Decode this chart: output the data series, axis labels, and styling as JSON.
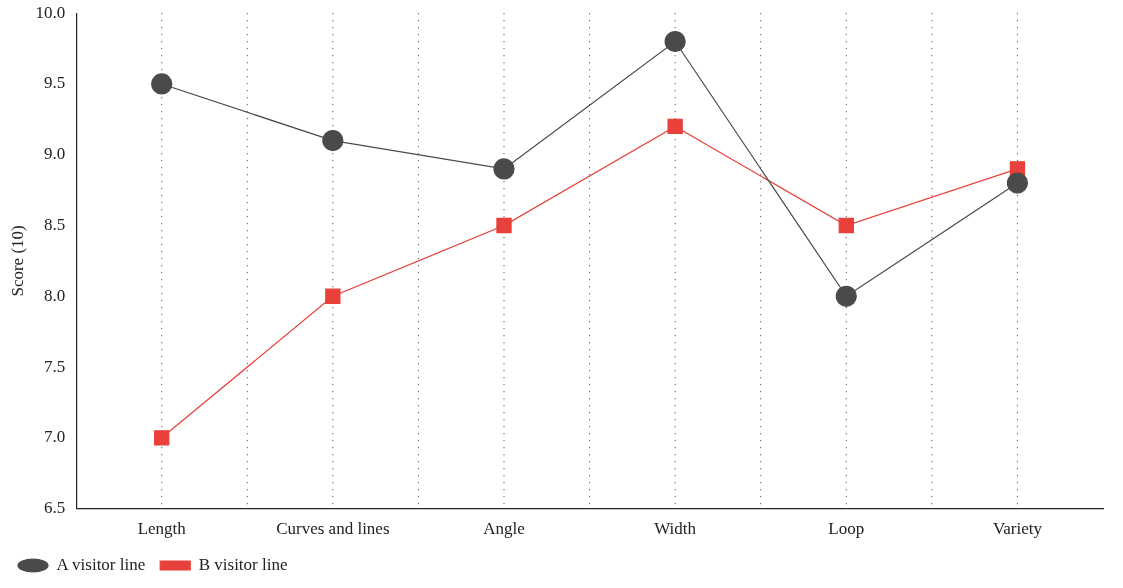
{
  "chart_data": {
    "type": "line",
    "ylabel": "Score (10)",
    "categories": [
      "Length",
      "Curves and lines",
      "Angle",
      "Width",
      "Loop",
      "Variety"
    ],
    "series": [
      {
        "name": "A visitor line",
        "color": "#4a4a4a",
        "marker": "circle",
        "values": [
          9.5,
          9.1,
          8.9,
          9.8,
          8.0,
          8.8
        ]
      },
      {
        "name": "B visitor line",
        "color": "#e8403a",
        "marker": "square",
        "values": [
          7.0,
          8.0,
          8.5,
          9.2,
          8.5,
          8.9
        ]
      }
    ],
    "ylim": [
      6.5,
      10.0
    ],
    "yticks": [
      {
        "value": 6.5,
        "label": "6.5"
      },
      {
        "value": 7.0,
        "label": "7.0"
      },
      {
        "value": 7.5,
        "label": "7.5"
      },
      {
        "value": 8.0,
        "label": "8.0"
      },
      {
        "value": 8.5,
        "label": "8.5"
      },
      {
        "value": 9.0,
        "label": "9.0"
      },
      {
        "value": 9.5,
        "label": "9.5"
      },
      {
        "value": 10.0,
        "label": "10.0"
      }
    ],
    "grid": "x",
    "legend": "bottom left"
  }
}
